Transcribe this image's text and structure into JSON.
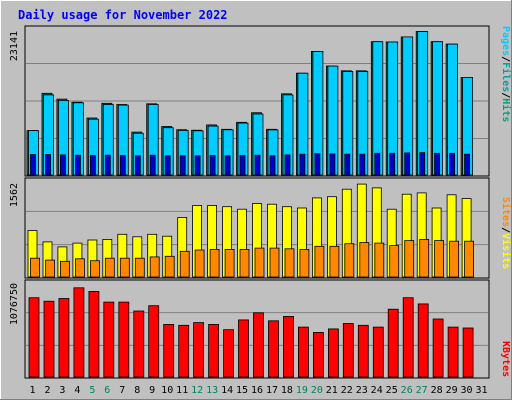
{
  "chart_data": [
    {
      "type": "bar",
      "title": "Daily usage for November 2022",
      "ymax_label": "23141",
      "ylim": [
        0,
        23141
      ],
      "grid": true,
      "legend": [
        {
          "name": "Pages",
          "color": "#00ccff"
        },
        {
          "name": "Files",
          "color": "#00a0a0"
        },
        {
          "name": "Hits",
          "color": "#00a080"
        }
      ],
      "categories": [
        "1",
        "2",
        "3",
        "4",
        "5",
        "6",
        "7",
        "8",
        "9",
        "10",
        "11",
        "12",
        "13",
        "14",
        "15",
        "16",
        "17",
        "18",
        "19",
        "20",
        "21",
        "22",
        "23",
        "24",
        "25",
        "26",
        "27",
        "28",
        "29",
        "30",
        "31"
      ],
      "series": [
        {
          "name": "Hits",
          "color": "#008080",
          "values": [
            6950,
            12780,
            11860,
            11390,
            8910,
            11210,
            11020,
            6710,
            11130,
            7590,
            7080,
            7010,
            7840,
            7150,
            8240,
            9740,
            7140,
            12690,
            15910,
            19330,
            17030,
            16290,
            16290,
            20840,
            20800,
            21600,
            22430,
            20840,
            20460,
            15260,
            null
          ]
        },
        {
          "name": "Files",
          "color": "#00ccff",
          "values": [
            6950,
            12520,
            11660,
            11290,
            8720,
            11020,
            10930,
            6520,
            11020,
            7400,
            6980,
            6910,
            7650,
            7070,
            8120,
            9540,
            7050,
            12520,
            15910,
            19330,
            17030,
            16190,
            16190,
            20840,
            20800,
            21600,
            22430,
            20840,
            20460,
            15260,
            null
          ]
        },
        {
          "name": "Pages",
          "color": "#0000cc",
          "values": [
            3200,
            3200,
            3150,
            3100,
            3050,
            3100,
            3050,
            3000,
            3100,
            3000,
            3000,
            3000,
            3050,
            3000,
            3050,
            3100,
            3000,
            3150,
            3250,
            3350,
            3300,
            3250,
            3250,
            3400,
            3400,
            3450,
            3500,
            3400,
            3400,
            3250,
            null
          ]
        }
      ]
    },
    {
      "type": "bar",
      "ymax_label": "1562",
      "ylim": [
        0,
        1562
      ],
      "grid": true,
      "legend": [
        {
          "name": "Sites",
          "color": "#ff8800"
        },
        {
          "name": "Visits",
          "color": "#ffff00"
        }
      ],
      "categories": [
        "1",
        "2",
        "3",
        "4",
        "5",
        "6",
        "7",
        "8",
        "9",
        "10",
        "11",
        "12",
        "13",
        "14",
        "15",
        "16",
        "17",
        "18",
        "19",
        "20",
        "21",
        "22",
        "23",
        "24",
        "25",
        "26",
        "27",
        "28",
        "29",
        "30",
        "31"
      ],
      "series": [
        {
          "name": "Visits",
          "color": "#ffff00",
          "values": [
            740,
            560,
            480,
            540,
            590,
            600,
            680,
            640,
            680,
            650,
            950,
            1140,
            1140,
            1120,
            1080,
            1170,
            1160,
            1120,
            1100,
            1260,
            1280,
            1400,
            1480,
            1420,
            1080,
            1320,
            1340,
            1100,
            1310,
            1250,
            null
          ]
        },
        {
          "name": "Sites",
          "color": "#ff8800",
          "values": [
            300,
            270,
            250,
            290,
            260,
            300,
            300,
            300,
            320,
            330,
            410,
            430,
            440,
            440,
            440,
            460,
            460,
            450,
            440,
            490,
            490,
            530,
            550,
            540,
            500,
            580,
            600,
            580,
            570,
            570,
            null
          ]
        }
      ]
    },
    {
      "type": "bar",
      "ymax_label": "1076750",
      "ylim": [
        0,
        1076750
      ],
      "grid": true,
      "legend": [
        {
          "name": "KBytes",
          "color": "#ff0000"
        }
      ],
      "categories": [
        "1",
        "2",
        "3",
        "4",
        "5",
        "6",
        "7",
        "8",
        "9",
        "10",
        "11",
        "12",
        "13",
        "14",
        "15",
        "16",
        "17",
        "18",
        "19",
        "20",
        "21",
        "22",
        "23",
        "24",
        "25",
        "26",
        "27",
        "28",
        "29",
        "30",
        "31"
      ],
      "series": [
        {
          "name": "KBytes",
          "color": "#ff0000",
          "values": [
            890000,
            850000,
            880000,
            1000000,
            960000,
            840000,
            840000,
            740000,
            800000,
            590000,
            580000,
            610000,
            590000,
            530000,
            640000,
            720000,
            630000,
            680000,
            560000,
            500000,
            540000,
            600000,
            580000,
            560000,
            760000,
            890000,
            820000,
            650000,
            560000,
            550000,
            null
          ]
        }
      ]
    }
  ],
  "x_axis": {
    "labels": [
      "1",
      "2",
      "3",
      "4",
      "5",
      "6",
      "7",
      "8",
      "9",
      "10",
      "11",
      "12",
      "13",
      "14",
      "15",
      "16",
      "17",
      "18",
      "19",
      "20",
      "21",
      "22",
      "23",
      "24",
      "25",
      "26",
      "27",
      "28",
      "29",
      "30",
      "31"
    ],
    "weekend": [
      false,
      false,
      false,
      false,
      true,
      true,
      false,
      false,
      false,
      false,
      false,
      true,
      true,
      false,
      false,
      false,
      false,
      false,
      true,
      true,
      false,
      false,
      false,
      false,
      false,
      true,
      true,
      false,
      false,
      false,
      false
    ],
    "weekday_color": "#000000",
    "weekend_color": "#00805c"
  },
  "colors": {
    "title": "#0000ff",
    "background": "#c0c0c0",
    "grid": "#808080",
    "panel_border": "#000000"
  }
}
